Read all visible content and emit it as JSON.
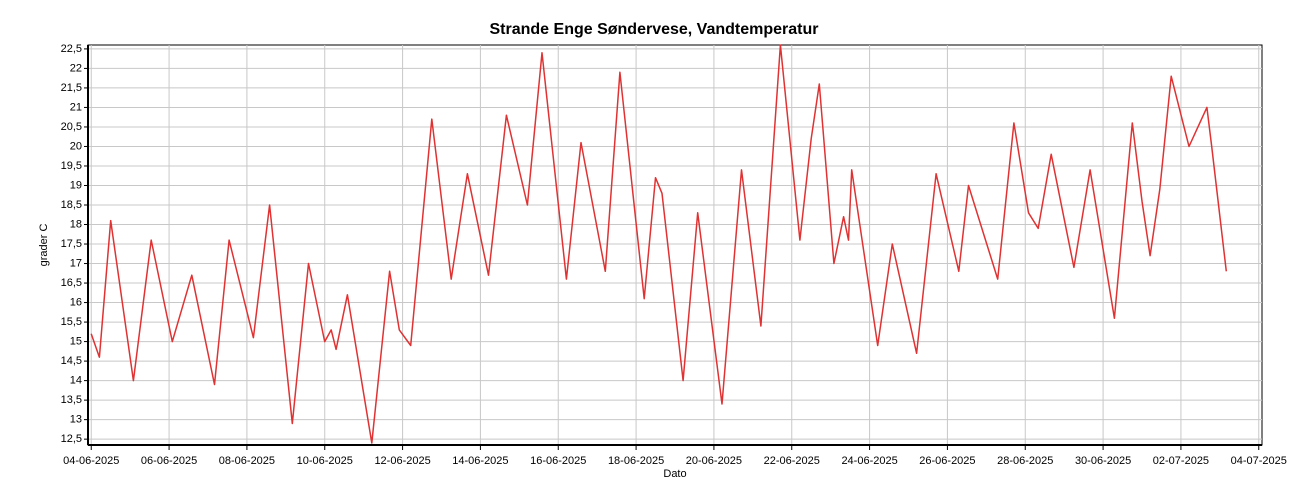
{
  "chart_data": {
    "type": "line",
    "title": "Strande Enge Søndervese, Vandtemperatur",
    "xlabel": "Dato",
    "ylabel": "grader C",
    "color": "#e03232",
    "grid": true,
    "xlim": [
      "2025-06-03 22:00",
      "2025-07-04 02:00"
    ],
    "ylim": [
      12.35,
      22.6
    ],
    "xticks": [
      {
        "value": "2025-06-04",
        "label": "04-06-2025"
      },
      {
        "value": "2025-06-06",
        "label": "06-06-2025"
      },
      {
        "value": "2025-06-08",
        "label": "08-06-2025"
      },
      {
        "value": "2025-06-10",
        "label": "10-06-2025"
      },
      {
        "value": "2025-06-12",
        "label": "12-06-2025"
      },
      {
        "value": "2025-06-14",
        "label": "14-06-2025"
      },
      {
        "value": "2025-06-16",
        "label": "16-06-2025"
      },
      {
        "value": "2025-06-18",
        "label": "18-06-2025"
      },
      {
        "value": "2025-06-20",
        "label": "20-06-2025"
      },
      {
        "value": "2025-06-22",
        "label": "22-06-2025"
      },
      {
        "value": "2025-06-24",
        "label": "24-06-2025"
      },
      {
        "value": "2025-06-26",
        "label": "26-06-2025"
      },
      {
        "value": "2025-06-28",
        "label": "28-06-2025"
      },
      {
        "value": "2025-06-30",
        "label": "30-06-2025"
      },
      {
        "value": "2025-07-02",
        "label": "02-07-2025"
      },
      {
        "value": "2025-07-04",
        "label": "04-07-2025"
      }
    ],
    "yticks": [
      {
        "value": 12.5,
        "label": "12,5"
      },
      13,
      {
        "value": 13.5,
        "label": "13,5"
      },
      14,
      {
        "value": 14.5,
        "label": "14,5"
      },
      15,
      {
        "value": 15.5,
        "label": "15,5"
      },
      16,
      {
        "value": 16.5,
        "label": "16,5"
      },
      17,
      {
        "value": 17.5,
        "label": "17,5"
      },
      18,
      {
        "value": 18.5,
        "label": "18,5"
      },
      19,
      {
        "value": 19.5,
        "label": "19,5"
      },
      20,
      {
        "value": 20.5,
        "label": "20,5"
      },
      21,
      {
        "value": 21.5,
        "label": "21,5"
      },
      22,
      {
        "value": 22.5,
        "label": "22,5"
      }
    ],
    "x": [
      "2025-06-04 00:00",
      "2025-06-04 05:00",
      "2025-06-04 12:00",
      "2025-06-05 02:00",
      "2025-06-05 13:00",
      "2025-06-06 02:00",
      "2025-06-06 14:00",
      "2025-06-07 04:00",
      "2025-06-07 13:00",
      "2025-06-08 04:00",
      "2025-06-08 14:00",
      "2025-06-09 04:00",
      "2025-06-09 14:00",
      "2025-06-10 00:00",
      "2025-06-10 04:00",
      "2025-06-10 07:00",
      "2025-06-10 14:00",
      "2025-06-11 05:00",
      "2025-06-11 16:00",
      "2025-06-11 22:00",
      "2025-06-12 05:00",
      "2025-06-12 18:00",
      "2025-06-13 06:00",
      "2025-06-13 16:00",
      "2025-06-14 05:00",
      "2025-06-14 16:00",
      "2025-06-15 05:00",
      "2025-06-15 14:00",
      "2025-06-16 05:00",
      "2025-06-16 14:00",
      "2025-06-17 05:00",
      "2025-06-17 14:00",
      "2025-06-18 05:00",
      "2025-06-18 12:00",
      "2025-06-18 16:00",
      "2025-06-19 05:00",
      "2025-06-19 14:00",
      "2025-06-20 05:00",
      "2025-06-20 17:00",
      "2025-06-21 05:00",
      "2025-06-21 17:00",
      "2025-06-22 05:00",
      "2025-06-22 12:00",
      "2025-06-22 17:00",
      "2025-06-23 02:00",
      "2025-06-23 08:00",
      "2025-06-23 11:00",
      "2025-06-23 13:00",
      "2025-06-24 05:00",
      "2025-06-24 14:00",
      "2025-06-25 05:00",
      "2025-06-25 17:00",
      "2025-06-26 07:00",
      "2025-06-26 13:00",
      "2025-06-27 07:00",
      "2025-06-27 17:00",
      "2025-06-28 02:00",
      "2025-06-28 08:00",
      "2025-06-28 16:00",
      "2025-06-29 06:00",
      "2025-06-29 16:00",
      "2025-06-30 07:00",
      "2025-06-30 18:00",
      "2025-07-01 00:00",
      "2025-07-01 05:00",
      "2025-07-01 11:00",
      "2025-07-01 18:00",
      "2025-07-02 05:00",
      "2025-07-02 16:00",
      "2025-07-02 19:00",
      "2025-07-03 04:00"
    ],
    "values": [
      15.2,
      14.6,
      18.1,
      14.0,
      17.6,
      15.0,
      16.7,
      13.9,
      17.6,
      15.1,
      18.5,
      12.9,
      17.0,
      15.0,
      15.3,
      14.8,
      16.2,
      12.4,
      16.8,
      15.3,
      14.9,
      20.7,
      16.6,
      19.3,
      16.7,
      20.8,
      18.5,
      22.4,
      16.6,
      20.1,
      16.8,
      21.9,
      16.1,
      19.2,
      18.8,
      14.0,
      18.3,
      13.4,
      19.4,
      15.4,
      22.6,
      17.6,
      20.2,
      21.6,
      17.0,
      18.2,
      17.6,
      19.4,
      14.9,
      17.5,
      14.7,
      19.3,
      16.8,
      19.0,
      16.6,
      20.6,
      18.3,
      17.9,
      19.8,
      16.9,
      19.4,
      15.6,
      20.6,
      18.6,
      17.2,
      18.9,
      21.8,
      20.0,
      21.0,
      20.0,
      16.8
    ]
  }
}
